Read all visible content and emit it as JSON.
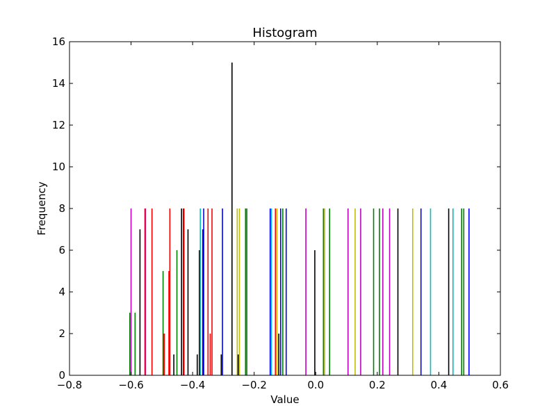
{
  "chart_data": {
    "type": "bar",
    "title": "Histogram",
    "xlabel": "Value",
    "ylabel": "Frequency",
    "xlim": [
      -0.8,
      0.6
    ],
    "ylim": [
      0,
      16
    ],
    "xticks": [
      "−0.8",
      "−0.6",
      "−0.4",
      "−0.2",
      "0.0",
      "0.2",
      "0.4",
      "0.6"
    ],
    "xtick_values": [
      -0.8,
      -0.6,
      -0.4,
      -0.2,
      0.0,
      0.2,
      0.4,
      0.6
    ],
    "yticks": [
      "0",
      "2",
      "4",
      "6",
      "8",
      "10",
      "12",
      "14",
      "16"
    ],
    "ytick_values": [
      0,
      2,
      4,
      6,
      8,
      10,
      12,
      14,
      16
    ],
    "grid": false,
    "bars": [
      {
        "x": -0.604,
        "value": 3,
        "color": "#008000"
      },
      {
        "x": -0.6,
        "value": 8,
        "color": "#bf00bf"
      },
      {
        "x": -0.587,
        "value": 3,
        "color": "#008000"
      },
      {
        "x": -0.571,
        "value": 7,
        "color": "#000000"
      },
      {
        "x": -0.555,
        "value": 8,
        "color": "#ff0000"
      },
      {
        "x": -0.553,
        "value": 8,
        "color": "#bf00bf"
      },
      {
        "x": -0.532,
        "value": 8,
        "color": "#ff0000"
      },
      {
        "x": -0.496,
        "value": 5,
        "color": "#008000"
      },
      {
        "x": -0.494,
        "value": 2,
        "color": "#ff0000"
      },
      {
        "x": -0.492,
        "value": 2,
        "color": "#ff0000"
      },
      {
        "x": -0.477,
        "value": 5,
        "color": "#ff0000"
      },
      {
        "x": -0.475,
        "value": 5,
        "color": "#008000"
      },
      {
        "x": -0.474,
        "value": 8,
        "color": "#ff0000"
      },
      {
        "x": -0.461,
        "value": 1,
        "color": "#000000"
      },
      {
        "x": -0.451,
        "value": 6,
        "color": "#008000"
      },
      {
        "x": -0.436,
        "value": 8,
        "color": "#000000"
      },
      {
        "x": -0.43,
        "value": 8,
        "color": "#0000ff"
      },
      {
        "x": -0.428,
        "value": 8,
        "color": "#ff0000"
      },
      {
        "x": -0.415,
        "value": 7,
        "color": "#000000"
      },
      {
        "x": -0.385,
        "value": 1,
        "color": "#000000"
      },
      {
        "x": -0.378,
        "value": 6,
        "color": "#000000"
      },
      {
        "x": -0.375,
        "value": 8,
        "color": "#00bfbf"
      },
      {
        "x": -0.367,
        "value": 7,
        "color": "#0000ff"
      },
      {
        "x": -0.364,
        "value": 8,
        "color": "#0000ff"
      },
      {
        "x": -0.35,
        "value": 8,
        "color": "#ff0000"
      },
      {
        "x": -0.343,
        "value": 2,
        "color": "#ff0000"
      },
      {
        "x": -0.337,
        "value": 8,
        "color": "#ff0000"
      },
      {
        "x": -0.307,
        "value": 1,
        "color": "#000000"
      },
      {
        "x": -0.303,
        "value": 8,
        "color": "#0000ff"
      },
      {
        "x": -0.272,
        "value": 15,
        "color": "#000000"
      },
      {
        "x": -0.255,
        "value": 8,
        "color": "#bfbf00"
      },
      {
        "x": -0.252,
        "value": 1,
        "color": "#000000"
      },
      {
        "x": -0.248,
        "value": 8,
        "color": "#bfbf00"
      },
      {
        "x": -0.228,
        "value": 8,
        "color": "#008000"
      },
      {
        "x": -0.224,
        "value": 8,
        "color": "#008000"
      },
      {
        "x": -0.148,
        "value": 8,
        "color": "#0000ff"
      },
      {
        "x": -0.144,
        "value": 8,
        "color": "#00bfbf"
      },
      {
        "x": -0.131,
        "value": 8,
        "color": "#ff0000"
      },
      {
        "x": -0.126,
        "value": 8,
        "color": "#bfbf00"
      },
      {
        "x": -0.12,
        "value": 2,
        "color": "#000000"
      },
      {
        "x": -0.114,
        "value": 8,
        "color": "#0000ff"
      },
      {
        "x": -0.107,
        "value": 8,
        "color": "#008000"
      },
      {
        "x": -0.096,
        "value": 8,
        "color": "#0000ff"
      },
      {
        "x": -0.032,
        "value": 8,
        "color": "#bf00bf"
      },
      {
        "x": -0.003,
        "value": 6,
        "color": "#000000"
      },
      {
        "x": 0.025,
        "value": 8,
        "color": "#008000"
      },
      {
        "x": 0.029,
        "value": 8,
        "color": "#bfbf00"
      },
      {
        "x": 0.045,
        "value": 8,
        "color": "#008000"
      },
      {
        "x": 0.105,
        "value": 8,
        "color": "#bf00bf"
      },
      {
        "x": 0.128,
        "value": 8,
        "color": "#bfbf00"
      },
      {
        "x": 0.146,
        "value": 8,
        "color": "#bf00bf"
      },
      {
        "x": 0.188,
        "value": 8,
        "color": "#008000"
      },
      {
        "x": 0.207,
        "value": 8,
        "color": "#008000"
      },
      {
        "x": 0.218,
        "value": 8,
        "color": "#bf00bf"
      },
      {
        "x": 0.24,
        "value": 8,
        "color": "#bf00bf"
      },
      {
        "x": 0.267,
        "value": 8,
        "color": "#000000"
      },
      {
        "x": 0.315,
        "value": 8,
        "color": "#bfbf00"
      },
      {
        "x": 0.342,
        "value": 8,
        "color": "#0000ff"
      },
      {
        "x": 0.373,
        "value": 8,
        "color": "#00bfbf"
      },
      {
        "x": 0.432,
        "value": 8,
        "color": "#000000"
      },
      {
        "x": 0.446,
        "value": 8,
        "color": "#00bfbf"
      },
      {
        "x": 0.474,
        "value": 8,
        "color": "#008000"
      },
      {
        "x": 0.481,
        "value": 8,
        "color": "#008000"
      },
      {
        "x": 0.498,
        "value": 8,
        "color": "#0000ff"
      }
    ]
  }
}
